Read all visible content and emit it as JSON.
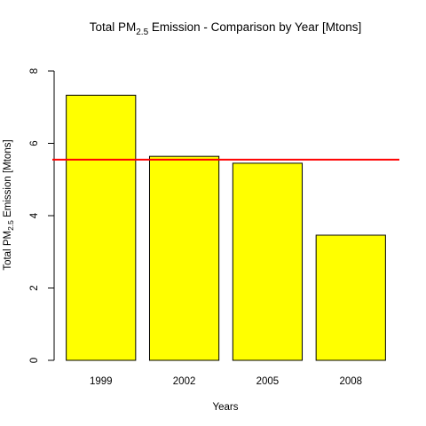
{
  "chart_data": {
    "type": "bar",
    "title": {
      "prefix": "Total PM",
      "subscript": "2.5",
      "suffix": " Emission - Comparison by Year [Mtons]"
    },
    "xlabel": "Years",
    "ylabel": {
      "prefix": "Total PM",
      "subscript": "2.5",
      "suffix": " Emission [Mtons]"
    },
    "categories": [
      "1999",
      "2002",
      "2005",
      "2008"
    ],
    "values": [
      7.33,
      5.64,
      5.45,
      3.46
    ],
    "ylim": [
      0,
      8
    ],
    "yticks": [
      "0",
      "2",
      "4",
      "6",
      "8"
    ],
    "reference_line": {
      "value": 5.55,
      "color": "#ff0000"
    },
    "bar_color": "#ffff00",
    "bar_border_color": "#000000",
    "grid": false
  }
}
